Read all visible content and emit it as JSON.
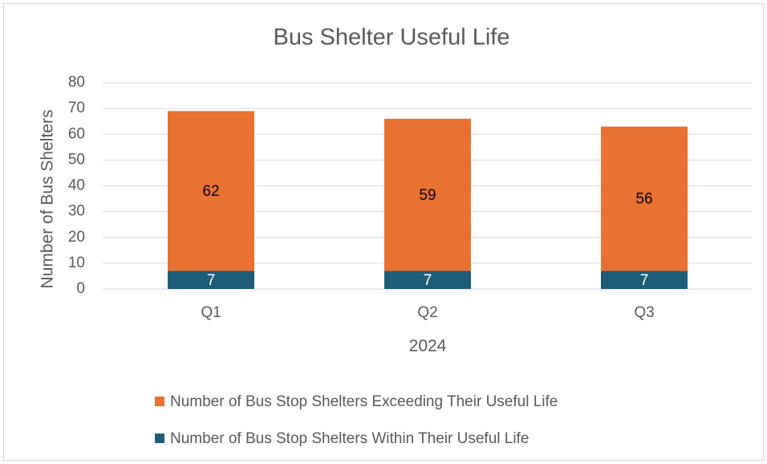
{
  "chart_data": {
    "type": "stacked_bar",
    "title": "Bus Shelter Useful Life",
    "y_label": "Number of Bus Shelters",
    "x_label": "2024",
    "categories": [
      "Q1",
      "Q2",
      "Q3"
    ],
    "series": [
      {
        "name": "Number of Bus Stop Shelters Within Their Useful Life",
        "color": "#1f5c7a",
        "values": [
          7,
          7,
          7
        ]
      },
      {
        "name": "Number of Bus Stop Shelters Exceeding Their Useful Life",
        "color": "#e97132",
        "values": [
          62,
          59,
          56
        ]
      }
    ],
    "ylim": [
      0,
      80
    ],
    "yticks": [
      0,
      10,
      20,
      30,
      40,
      50,
      60,
      70,
      80
    ],
    "grid": true,
    "legend": "bottom"
  }
}
